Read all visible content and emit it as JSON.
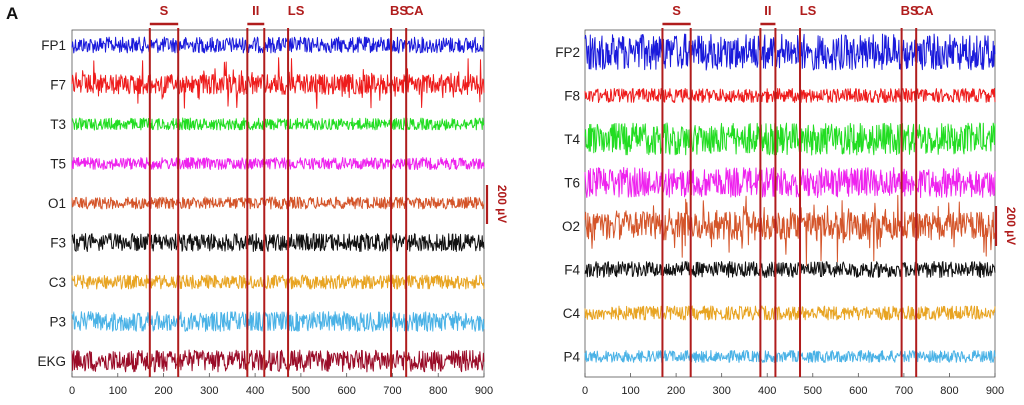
{
  "panel_letter": "A",
  "colors": {
    "marker": "#b01c1c",
    "axis": "#555555"
  },
  "chart_data": [
    {
      "type": "line",
      "title": "",
      "xlabel": "",
      "ylabel": "",
      "xlim": [
        0,
        900
      ],
      "xticks": [
        "0",
        "100",
        "200",
        "300",
        "400",
        "500",
        "600",
        "700",
        "800",
        "900"
      ],
      "scale_bar": {
        "label": "200 µV",
        "value_uV": 200
      },
      "markers": [
        {
          "label": "S",
          "start": 170,
          "end": 232
        },
        {
          "label": "II",
          "start": 383,
          "end": 420
        },
        {
          "label": "LS",
          "start": 472,
          "end": 472
        },
        {
          "label": "BS",
          "start": 697,
          "end": 697
        },
        {
          "label": "CA",
          "start": 730,
          "end": 730
        }
      ],
      "series": [
        {
          "name": "FP1",
          "color": "#1a1adb",
          "amplitude": 8,
          "style": "dense"
        },
        {
          "name": "F7",
          "color": "#ee1c1c",
          "amplitude": 10,
          "style": "spiky"
        },
        {
          "name": "T3",
          "color": "#22dd22",
          "amplitude": 6,
          "style": "dense"
        },
        {
          "name": "T5",
          "color": "#ee22ee",
          "amplitude": 6,
          "style": "dense"
        },
        {
          "name": "O1",
          "color": "#d4552a",
          "amplitude": 6,
          "style": "dense"
        },
        {
          "name": "F3",
          "color": "#111111",
          "amplitude": 9,
          "style": "dense"
        },
        {
          "name": "C3",
          "color": "#e8a422",
          "amplitude": 7,
          "style": "dense"
        },
        {
          "name": "P3",
          "color": "#4ab2e6",
          "amplitude": 10,
          "style": "dense"
        },
        {
          "name": "EKG",
          "color": "#9a0c28",
          "amplitude": 11,
          "style": "dense"
        }
      ]
    },
    {
      "type": "line",
      "title": "",
      "xlabel": "",
      "ylabel": "",
      "xlim": [
        0,
        900
      ],
      "xticks": [
        "0",
        "100",
        "200",
        "300",
        "400",
        "500",
        "600",
        "700",
        "800",
        "900"
      ],
      "scale_bar": {
        "label": "200 µV",
        "value_uV": 200
      },
      "markers": [
        {
          "label": "S",
          "start": 170,
          "end": 232
        },
        {
          "label": "II",
          "start": 385,
          "end": 418
        },
        {
          "label": "LS",
          "start": 472,
          "end": 472
        },
        {
          "label": "BS",
          "start": 695,
          "end": 695
        },
        {
          "label": "CA",
          "start": 727,
          "end": 727
        }
      ],
      "series": [
        {
          "name": "FP2",
          "color": "#1a1adb",
          "amplitude": 18,
          "style": "dense"
        },
        {
          "name": "F8",
          "color": "#ee1c1c",
          "amplitude": 7,
          "style": "dense"
        },
        {
          "name": "T4",
          "color": "#22dd22",
          "amplitude": 16,
          "style": "dense"
        },
        {
          "name": "T6",
          "color": "#ee22ee",
          "amplitude": 15,
          "style": "dense"
        },
        {
          "name": "O2",
          "color": "#d4552a",
          "amplitude": 14,
          "style": "spiky"
        },
        {
          "name": "F4",
          "color": "#111111",
          "amplitude": 8,
          "style": "dense"
        },
        {
          "name": "C4",
          "color": "#e8a422",
          "amplitude": 7,
          "style": "dense"
        },
        {
          "name": "P4",
          "color": "#4ab2e6",
          "amplitude": 6,
          "style": "dense"
        }
      ]
    }
  ]
}
